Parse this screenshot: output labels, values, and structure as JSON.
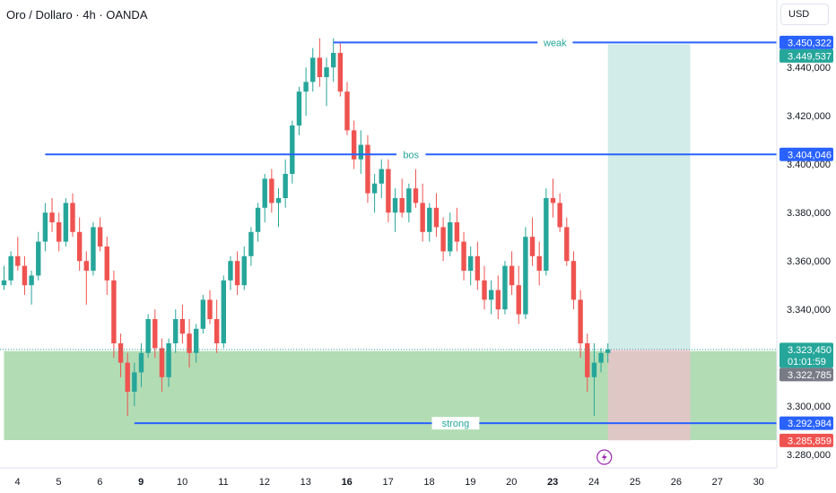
{
  "header": {
    "title": "Oro / Dollaro · 4h · OANDA",
    "currency": "USD"
  },
  "colors": {
    "up": "#26a69a",
    "down": "#ef5350",
    "level_line": "#2962ff",
    "demand_zone": "#a5d6a7",
    "target_zone": "#b2dfdb",
    "stop_zone": "#f8bbd0"
  },
  "icons": {
    "alert": "lightning-icon"
  },
  "chart_data": {
    "type": "candlestick",
    "y_range": [
      3276000,
      3456000
    ],
    "y_ticks": [
      {
        "value": 3440000,
        "label": "3.440,000"
      },
      {
        "value": 3420000,
        "label": "3.420,000"
      },
      {
        "value": 3400000,
        "label": "3.400,000"
      },
      {
        "value": 3380000,
        "label": "3.380,000"
      },
      {
        "value": 3360000,
        "label": "3.360,000"
      },
      {
        "value": 3340000,
        "label": "3.340,000"
      },
      {
        "value": 3300000,
        "label": "3.300,000"
      },
      {
        "value": 3280000,
        "label": "3.280,000"
      }
    ],
    "x_ticks": [
      {
        "index": 0,
        "label": "4",
        "bold": false
      },
      {
        "index": 6,
        "label": "5",
        "bold": false
      },
      {
        "index": 12,
        "label": "6",
        "bold": false
      },
      {
        "index": 18,
        "label": "9",
        "bold": true
      },
      {
        "index": 24,
        "label": "10",
        "bold": false
      },
      {
        "index": 30,
        "label": "11",
        "bold": false
      },
      {
        "index": 36,
        "label": "12",
        "bold": false
      },
      {
        "index": 42,
        "label": "13",
        "bold": false
      },
      {
        "index": 48,
        "label": "16",
        "bold": true
      },
      {
        "index": 54,
        "label": "17",
        "bold": false
      },
      {
        "index": 60,
        "label": "18",
        "bold": false
      },
      {
        "index": 66,
        "label": "19",
        "bold": false
      },
      {
        "index": 72,
        "label": "20",
        "bold": false
      },
      {
        "index": 78,
        "label": "23",
        "bold": true
      },
      {
        "index": 84,
        "label": "24",
        "bold": false
      },
      {
        "index": 90,
        "label": "25",
        "bold": false
      },
      {
        "index": 96,
        "label": "26",
        "bold": false
      },
      {
        "index": 102,
        "label": "27",
        "bold": false
      },
      {
        "index": 108,
        "label": "30",
        "bold": false
      }
    ],
    "ohlc": [
      [
        3350,
        3358,
        3348,
        3352
      ],
      [
        3352,
        3364,
        3350,
        3362
      ],
      [
        3362,
        3370,
        3356,
        3358
      ],
      [
        3358,
        3362,
        3346,
        3350
      ],
      [
        3350,
        3356,
        3342,
        3354
      ],
      [
        3354,
        3372,
        3352,
        3368
      ],
      [
        3368,
        3384,
        3364,
        3380
      ],
      [
        3380,
        3386,
        3372,
        3376
      ],
      [
        3376,
        3380,
        3364,
        3368
      ],
      [
        3368,
        3386,
        3366,
        3384
      ],
      [
        3384,
        3388,
        3370,
        3372
      ],
      [
        3372,
        3378,
        3356,
        3360
      ],
      [
        3360,
        3364,
        3342,
        3356
      ],
      [
        3356,
        3376,
        3354,
        3374
      ],
      [
        3374,
        3378,
        3364,
        3366
      ],
      [
        3366,
        3370,
        3346,
        3352
      ],
      [
        3352,
        3356,
        3320,
        3326
      ],
      [
        3326,
        3330,
        3312,
        3318
      ],
      [
        3318,
        3322,
        3296,
        3306
      ],
      [
        3306,
        3318,
        3300,
        3314
      ],
      [
        3314,
        3326,
        3308,
        3322
      ],
      [
        3322,
        3338,
        3320,
        3336
      ],
      [
        3336,
        3340,
        3320,
        3324
      ],
      [
        3324,
        3328,
        3306,
        3312
      ],
      [
        3312,
        3328,
        3308,
        3326
      ],
      [
        3326,
        3340,
        3322,
        3336
      ],
      [
        3336,
        3342,
        3326,
        3330
      ],
      [
        3330,
        3336,
        3316,
        3322
      ],
      [
        3322,
        3334,
        3318,
        3332
      ],
      [
        3332,
        3346,
        3330,
        3344
      ],
      [
        3344,
        3348,
        3334,
        3336
      ],
      [
        3336,
        3344,
        3322,
        3326
      ],
      [
        3326,
        3354,
        3324,
        3352
      ],
      [
        3352,
        3362,
        3348,
        3360
      ],
      [
        3360,
        3364,
        3346,
        3350
      ],
      [
        3350,
        3366,
        3348,
        3362
      ],
      [
        3362,
        3374,
        3358,
        3372
      ],
      [
        3372,
        3384,
        3368,
        3382
      ],
      [
        3382,
        3396,
        3376,
        3394
      ],
      [
        3394,
        3398,
        3380,
        3384
      ],
      [
        3384,
        3390,
        3374,
        3386
      ],
      [
        3386,
        3402,
        3382,
        3396
      ],
      [
        3396,
        3418,
        3392,
        3416
      ],
      [
        3416,
        3432,
        3412,
        3430
      ],
      [
        3430,
        3440,
        3420,
        3434
      ],
      [
        3434,
        3448,
        3430,
        3444
      ],
      [
        3444,
        3452,
        3432,
        3436
      ],
      [
        3436,
        3444,
        3424,
        3440
      ],
      [
        3440,
        3452,
        3434,
        3446
      ],
      [
        3446,
        3450,
        3428,
        3430
      ],
      [
        3430,
        3434,
        3412,
        3414
      ],
      [
        3414,
        3418,
        3398,
        3402
      ],
      [
        3402,
        3414,
        3396,
        3408
      ],
      [
        3408,
        3412,
        3384,
        3388
      ],
      [
        3388,
        3396,
        3380,
        3392
      ],
      [
        3392,
        3402,
        3386,
        3398
      ],
      [
        3398,
        3402,
        3376,
        3380
      ],
      [
        3380,
        3390,
        3372,
        3386
      ],
      [
        3386,
        3394,
        3378,
        3380
      ],
      [
        3380,
        3392,
        3376,
        3390
      ],
      [
        3390,
        3398,
        3382,
        3384
      ],
      [
        3384,
        3392,
        3368,
        3372
      ],
      [
        3372,
        3384,
        3368,
        3382
      ],
      [
        3382,
        3388,
        3370,
        3374
      ],
      [
        3374,
        3378,
        3360,
        3364
      ],
      [
        3364,
        3380,
        3362,
        3376
      ],
      [
        3376,
        3382,
        3364,
        3368
      ],
      [
        3368,
        3372,
        3352,
        3356
      ],
      [
        3356,
        3366,
        3350,
        3362
      ],
      [
        3362,
        3368,
        3348,
        3352
      ],
      [
        3352,
        3358,
        3340,
        3344
      ],
      [
        3344,
        3352,
        3338,
        3348
      ],
      [
        3348,
        3354,
        3336,
        3340
      ],
      [
        3340,
        3360,
        3338,
        3358
      ],
      [
        3358,
        3364,
        3346,
        3350
      ],
      [
        3350,
        3358,
        3334,
        3338
      ],
      [
        3338,
        3374,
        3336,
        3370
      ],
      [
        3370,
        3378,
        3358,
        3362
      ],
      [
        3362,
        3368,
        3350,
        3356
      ],
      [
        3356,
        3390,
        3354,
        3386
      ],
      [
        3386,
        3394,
        3378,
        3384
      ],
      [
        3384,
        3388,
        3372,
        3374
      ],
      [
        3374,
        3378,
        3358,
        3360
      ],
      [
        3360,
        3364,
        3340,
        3344
      ],
      [
        3344,
        3348,
        3320,
        3326
      ],
      [
        3326,
        3330,
        3306,
        3312
      ],
      [
        3312,
        3326,
        3296,
        3318
      ],
      [
        3318,
        3324,
        3314,
        3322
      ],
      [
        3322,
        3326,
        3318,
        3323.45
      ]
    ],
    "levels": [
      {
        "label": "weak",
        "price": 3450322,
        "from_index": 48,
        "price_label": "3.450,322"
      },
      {
        "label": "bos",
        "price": 3404046,
        "from_index": 6,
        "price_label": "3.404,046"
      },
      {
        "label": "strong",
        "price": 3292984,
        "from_index": 19,
        "price_label": "3.292,984"
      }
    ],
    "zones": [
      {
        "name": "demand-zone",
        "top": 3322785,
        "bottom": 3286000,
        "from_index": 0
      },
      {
        "name": "target-zone",
        "top": 3449537,
        "bottom": 3323450,
        "from_index": 88,
        "to_index": 100
      },
      {
        "name": "stop-zone",
        "top": 3323450,
        "bottom": 3285859,
        "from_index": 88,
        "to_index": 100
      }
    ],
    "price_badges": [
      {
        "value": 3450322,
        "label": "3.450,322",
        "style": "level"
      },
      {
        "value": 3449537,
        "label": "3.449,537",
        "style": "target"
      },
      {
        "value": 3404046,
        "label": "3.404,046",
        "style": "level"
      },
      {
        "value": 3323450,
        "label": "3.323,450",
        "sublabel": "01:01:59",
        "style": "current"
      },
      {
        "value": 3322785,
        "label": "3.322,785",
        "style": "gray"
      },
      {
        "value": 3292984,
        "label": "3.292,984",
        "style": "level"
      },
      {
        "value": 3285859,
        "label": "3.285,859",
        "style": "stop"
      }
    ],
    "current_price": 3323450
  }
}
